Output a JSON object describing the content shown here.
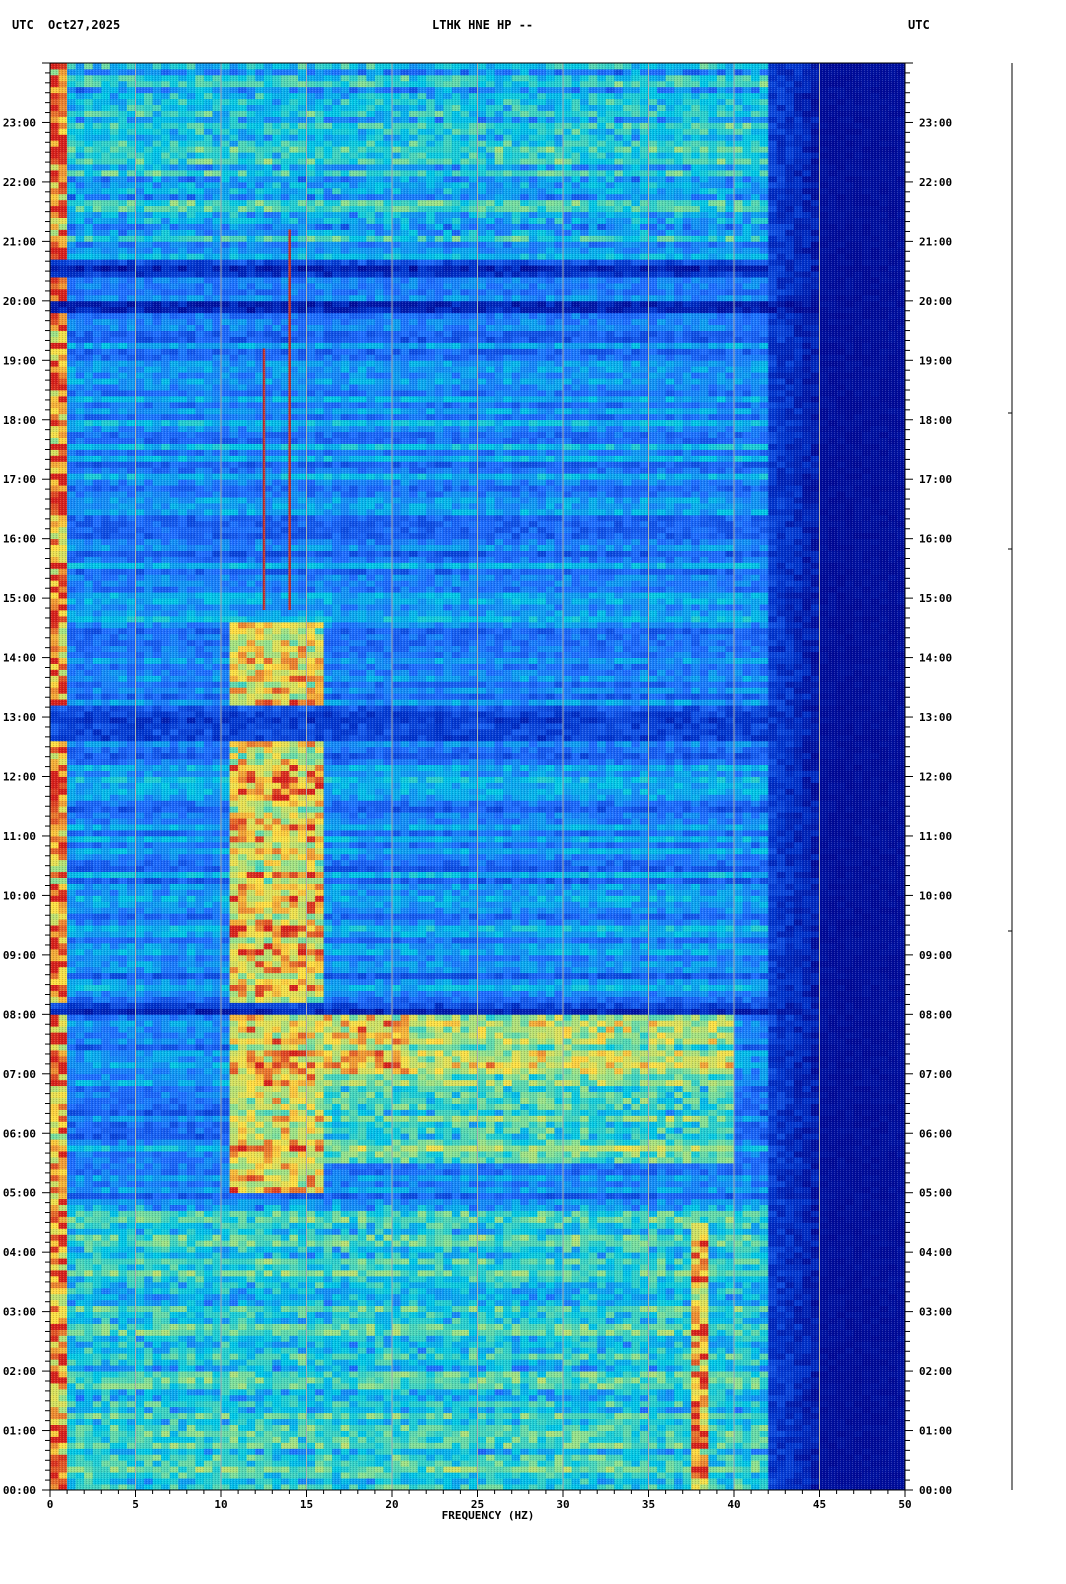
{
  "header": {
    "left_tz": "UTC",
    "date": "Oct27,2025",
    "station": "LTHK HNE HP --",
    "right_tz": "UTC"
  },
  "chart_data": {
    "type": "heatmap",
    "title": "LTHK HNE HP --",
    "xlabel": "FREQUENCY (HZ)",
    "ylabel": "UTC",
    "xlim": [
      0,
      50
    ],
    "ylim": [
      0,
      24
    ],
    "x_ticks": [
      0,
      5,
      10,
      15,
      20,
      25,
      30,
      35,
      40,
      45,
      50
    ],
    "x_tick_labels": [
      "0",
      "5",
      "10",
      "15",
      "20",
      "25",
      "30",
      "35",
      "40",
      "45",
      "50"
    ],
    "y_ticks": [
      0,
      1,
      2,
      3,
      4,
      5,
      6,
      7,
      8,
      9,
      10,
      11,
      12,
      13,
      14,
      15,
      16,
      17,
      18,
      19,
      20,
      21,
      22,
      23
    ],
    "y_tick_labels": [
      "00:00",
      "01:00",
      "02:00",
      "03:00",
      "04:00",
      "05:00",
      "06:00",
      "07:00",
      "08:00",
      "09:00",
      "10:00",
      "11:00",
      "12:00",
      "13:00",
      "14:00",
      "15:00",
      "16:00",
      "17:00",
      "18:00",
      "19:00",
      "20:00",
      "21:00",
      "22:00",
      "23:00"
    ],
    "grid": true,
    "colormap": [
      "#00008b",
      "#0033cc",
      "#1e6fff",
      "#00c8e6",
      "#8ee28e",
      "#ffe040",
      "#d8201a"
    ],
    "energy_bands": [
      {
        "f_min": 0.2,
        "f_max": 0.8,
        "t_min": 0.0,
        "t_max": 24.0,
        "level": 0.95
      },
      {
        "f_min": 10.5,
        "f_max": 16.0,
        "t_min": 5.0,
        "t_max": 14.6,
        "level": 0.85
      },
      {
        "f_min": 16.0,
        "f_max": 21.0,
        "t_min": 7.0,
        "t_max": 8.0,
        "level": 0.85
      },
      {
        "f_min": 21.0,
        "f_max": 40.0,
        "t_min": 7.0,
        "t_max": 8.0,
        "level": 0.75
      },
      {
        "f_min": 15.0,
        "f_max": 40.0,
        "t_min": 5.5,
        "t_max": 7.0,
        "level": 0.65
      },
      {
        "f_min": 37.5,
        "f_max": 38.5,
        "t_min": 0.0,
        "t_max": 4.5,
        "level": 0.9
      },
      {
        "f_min": 0.0,
        "f_max": 42.0,
        "t_min": 0.0,
        "t_max": 4.8,
        "level": 0.55
      },
      {
        "f_min": 0.0,
        "f_max": 42.0,
        "t_min": 21.0,
        "t_max": 24.0,
        "level": 0.5
      }
    ],
    "quiet_bands": [
      {
        "t_min": 19.8,
        "t_max": 20.0,
        "level": 0.05
      },
      {
        "t_min": 20.4,
        "t_max": 20.7,
        "level": 0.12
      },
      {
        "t_min": 12.6,
        "t_max": 13.2,
        "level": 0.15
      },
      {
        "t_min": 8.0,
        "t_max": 8.15,
        "level": 0.1
      }
    ],
    "highlight_lines": [
      {
        "freq": 14.0,
        "t_min": 14.8,
        "t_max": 21.2
      },
      {
        "freq": 12.5,
        "t_min": 14.8,
        "t_max": 19.2
      }
    ]
  }
}
